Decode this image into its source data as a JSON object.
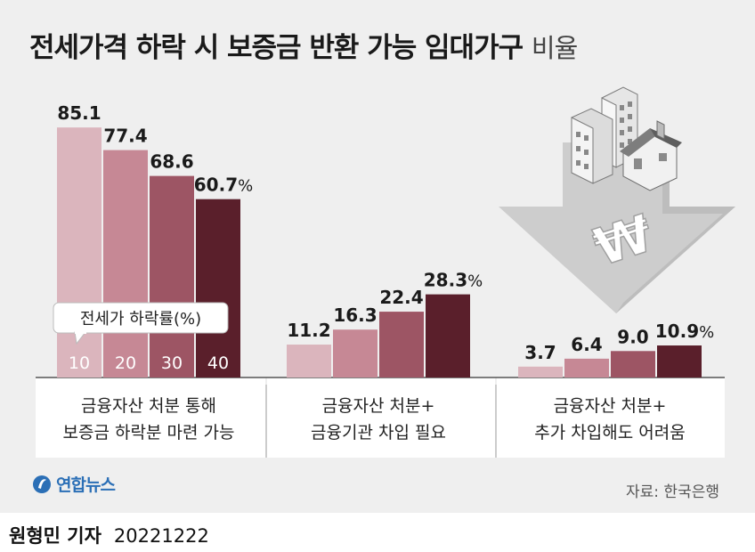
{
  "title": {
    "main": "전세가격 하락 시 보증금 반환 가능 임대가구",
    "light": "비율"
  },
  "chart_data": {
    "type": "bar",
    "categories": [
      "10",
      "20",
      "30",
      "40"
    ],
    "legend_label": "전세가 하락률(%)",
    "unit": "%",
    "groups": [
      {
        "label_line1": "금융자산 처분 통해",
        "label_line2": "보증금 하락분 마련 가능",
        "values": [
          85.1,
          77.4,
          68.6,
          60.7
        ]
      },
      {
        "label_line1": "금융자산 처분+",
        "label_line2": "금융기관 차입 필요",
        "values": [
          11.2,
          16.3,
          22.4,
          28.3
        ]
      },
      {
        "label_line1": "금융자산 처분+",
        "label_line2": "추가 차입해도 어려움",
        "values": [
          3.7,
          6.4,
          9.0,
          10.9
        ]
      }
    ],
    "colors": [
      "#dbb5bd",
      "#c68895",
      "#9d5564",
      "#5a1f2b"
    ],
    "ylim": [
      0,
      100
    ]
  },
  "source": "자료: 한국은행",
  "logo": "연합뉴스",
  "byline": {
    "name": "원형민 기자",
    "date": "20221222"
  },
  "illustration": {
    "icon": "house-price-drop-arrow-icon",
    "symbol": "₩"
  }
}
